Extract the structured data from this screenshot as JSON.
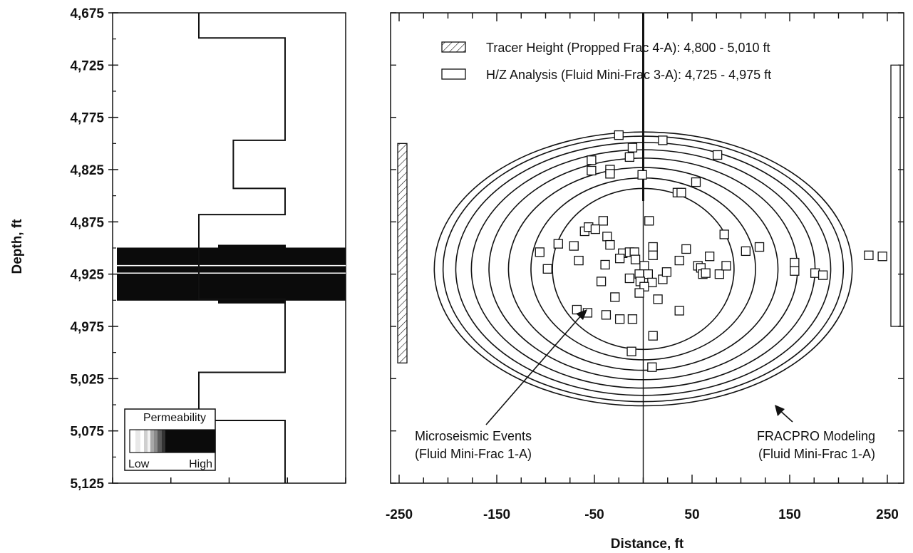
{
  "chart_data": [
    {
      "type": "line",
      "panel": "depth-log",
      "ylabel": "Depth, ft",
      "ylim": [
        4675,
        5125
      ],
      "y_reversed": true,
      "yticks": [
        "4,675",
        "4,725",
        "4,775",
        "4,825",
        "4,875",
        "4,925",
        "4,975",
        "5,025",
        "5,075",
        "5,125"
      ],
      "ytick_values": [
        4675,
        4725,
        4775,
        4825,
        4875,
        4925,
        4975,
        5025,
        5075,
        5125
      ],
      "permeability_profile": [
        {
          "top": 4675,
          "bottom": 4699,
          "level": 0.5
        },
        {
          "top": 4699,
          "bottom": 4797,
          "level": 1.0
        },
        {
          "top": 4797,
          "bottom": 4843,
          "level": 0.7
        },
        {
          "top": 4843,
          "bottom": 4868,
          "level": 1.0
        },
        {
          "top": 4868,
          "bottom": 4893,
          "level": 0.5
        },
        {
          "top": 4893,
          "bottom": 4949,
          "level": 0.5
        },
        {
          "top": 4949,
          "bottom": 5019,
          "level": 1.0
        },
        {
          "top": 5019,
          "bottom": 5065,
          "level": 0.5
        },
        {
          "top": 5065,
          "bottom": 5125,
          "level": 1.0
        }
      ],
      "high_perm_zone": {
        "top": 4901,
        "bottom": 4949
      },
      "legend": {
        "title": "Permeability",
        "low": "Low",
        "high": "High"
      }
    },
    {
      "type": "scatter",
      "panel": "fracture-map",
      "xlabel": "Distance, ft",
      "xlim": [
        -250,
        250
      ],
      "xticks": [
        "-250",
        "-150",
        "-50",
        "50",
        "150",
        "250"
      ],
      "xtick_values": [
        -250,
        -150,
        -50,
        50,
        150,
        250
      ],
      "ylim": [
        4675,
        5125
      ],
      "legend": [
        {
          "label": "Tracer Height (Propped Frac 4-A): 4,800 - 5,010 ft",
          "style": "hatched",
          "range": [
            4800,
            5010
          ]
        },
        {
          "label": "H/Z Analysis (Fluid Mini-Frac 3-A): 4,725 - 4,975 ft",
          "style": "open",
          "range": [
            4725,
            4975
          ]
        }
      ],
      "annotations": [
        {
          "text": [
            "Microseismic Events",
            "(Fluid Mini-Frac 1-A)"
          ]
        },
        {
          "text": [
            "FRACPRO Modeling",
            "(Fluid Mini-Frac 1-A)"
          ]
        }
      ],
      "wellbore_x": 0,
      "ellipses": [
        {
          "center": [
            0,
            4920
          ],
          "half_length": 93,
          "half_height": 77
        },
        {
          "center": [
            0,
            4920
          ],
          "half_length": 115,
          "half_height": 87
        },
        {
          "center": [
            0,
            4920
          ],
          "half_length": 138,
          "half_height": 97
        },
        {
          "center": [
            0,
            4920
          ],
          "half_length": 158,
          "half_height": 106
        },
        {
          "center": [
            0,
            4920
          ],
          "half_length": 176,
          "half_height": 114
        },
        {
          "center": [
            0,
            4920
          ],
          "half_length": 192,
          "half_height": 121
        },
        {
          "center": [
            0,
            4920
          ],
          "half_length": 205,
          "half_height": 127
        },
        {
          "center": [
            0,
            4920
          ],
          "half_length": 214,
          "half_height": 131
        }
      ],
      "events": [
        [
          -25,
          4792
        ],
        [
          -11,
          4804
        ],
        [
          20,
          4797
        ],
        [
          76,
          4811
        ],
        [
          -53,
          4816
        ],
        [
          -53,
          4826
        ],
        [
          -34,
          4825
        ],
        [
          -34,
          4829
        ],
        [
          -14,
          4813
        ],
        [
          -1,
          4830
        ],
        [
          35,
          4847
        ],
        [
          39,
          4847
        ],
        [
          54,
          4837
        ],
        [
          -60,
          4884
        ],
        [
          -41,
          4874
        ],
        [
          -37,
          4889
        ],
        [
          -106,
          4904
        ],
        [
          -87,
          4896
        ],
        [
          -71,
          4898
        ],
        [
          -56,
          4880
        ],
        [
          -49,
          4882
        ],
        [
          -34,
          4897
        ],
        [
          -21,
          4905
        ],
        [
          -14,
          4904
        ],
        [
          -9,
          4904
        ],
        [
          -98,
          4920
        ],
        [
          -66,
          4912
        ],
        [
          -39,
          4916
        ],
        [
          -24,
          4910
        ],
        [
          -8,
          4911
        ],
        [
          6,
          4874
        ],
        [
          10,
          4899
        ],
        [
          10,
          4907
        ],
        [
          1,
          4917
        ],
        [
          5,
          4925
        ],
        [
          9,
          4933
        ],
        [
          20,
          4930
        ],
        [
          24,
          4923
        ],
        [
          37,
          4912
        ],
        [
          44,
          4901
        ],
        [
          56,
          4917
        ],
        [
          59,
          4919
        ],
        [
          61,
          4925
        ],
        [
          64,
          4924
        ],
        [
          68,
          4908
        ],
        [
          78,
          4925
        ],
        [
          83,
          4887
        ],
        [
          85,
          4917
        ],
        [
          105,
          4903
        ],
        [
          -4,
          4925
        ],
        [
          -3,
          4932
        ],
        [
          1,
          4937
        ],
        [
          -43,
          4932
        ],
        [
          -14,
          4929
        ],
        [
          -4,
          4943
        ],
        [
          -68,
          4959
        ],
        [
          -57,
          4962
        ],
        [
          -38,
          4964
        ],
        [
          -24,
          4968
        ],
        [
          -11,
          4968
        ],
        [
          15,
          4949
        ],
        [
          37,
          4960
        ],
        [
          10,
          4984
        ],
        [
          -12,
          4999
        ],
        [
          9,
          5014
        ],
        [
          -29,
          4947
        ],
        [
          119,
          4899
        ],
        [
          155,
          4914
        ],
        [
          155,
          4922
        ],
        [
          176,
          4924
        ],
        [
          184,
          4926
        ],
        [
          231,
          4907
        ],
        [
          245,
          4908
        ]
      ]
    }
  ]
}
